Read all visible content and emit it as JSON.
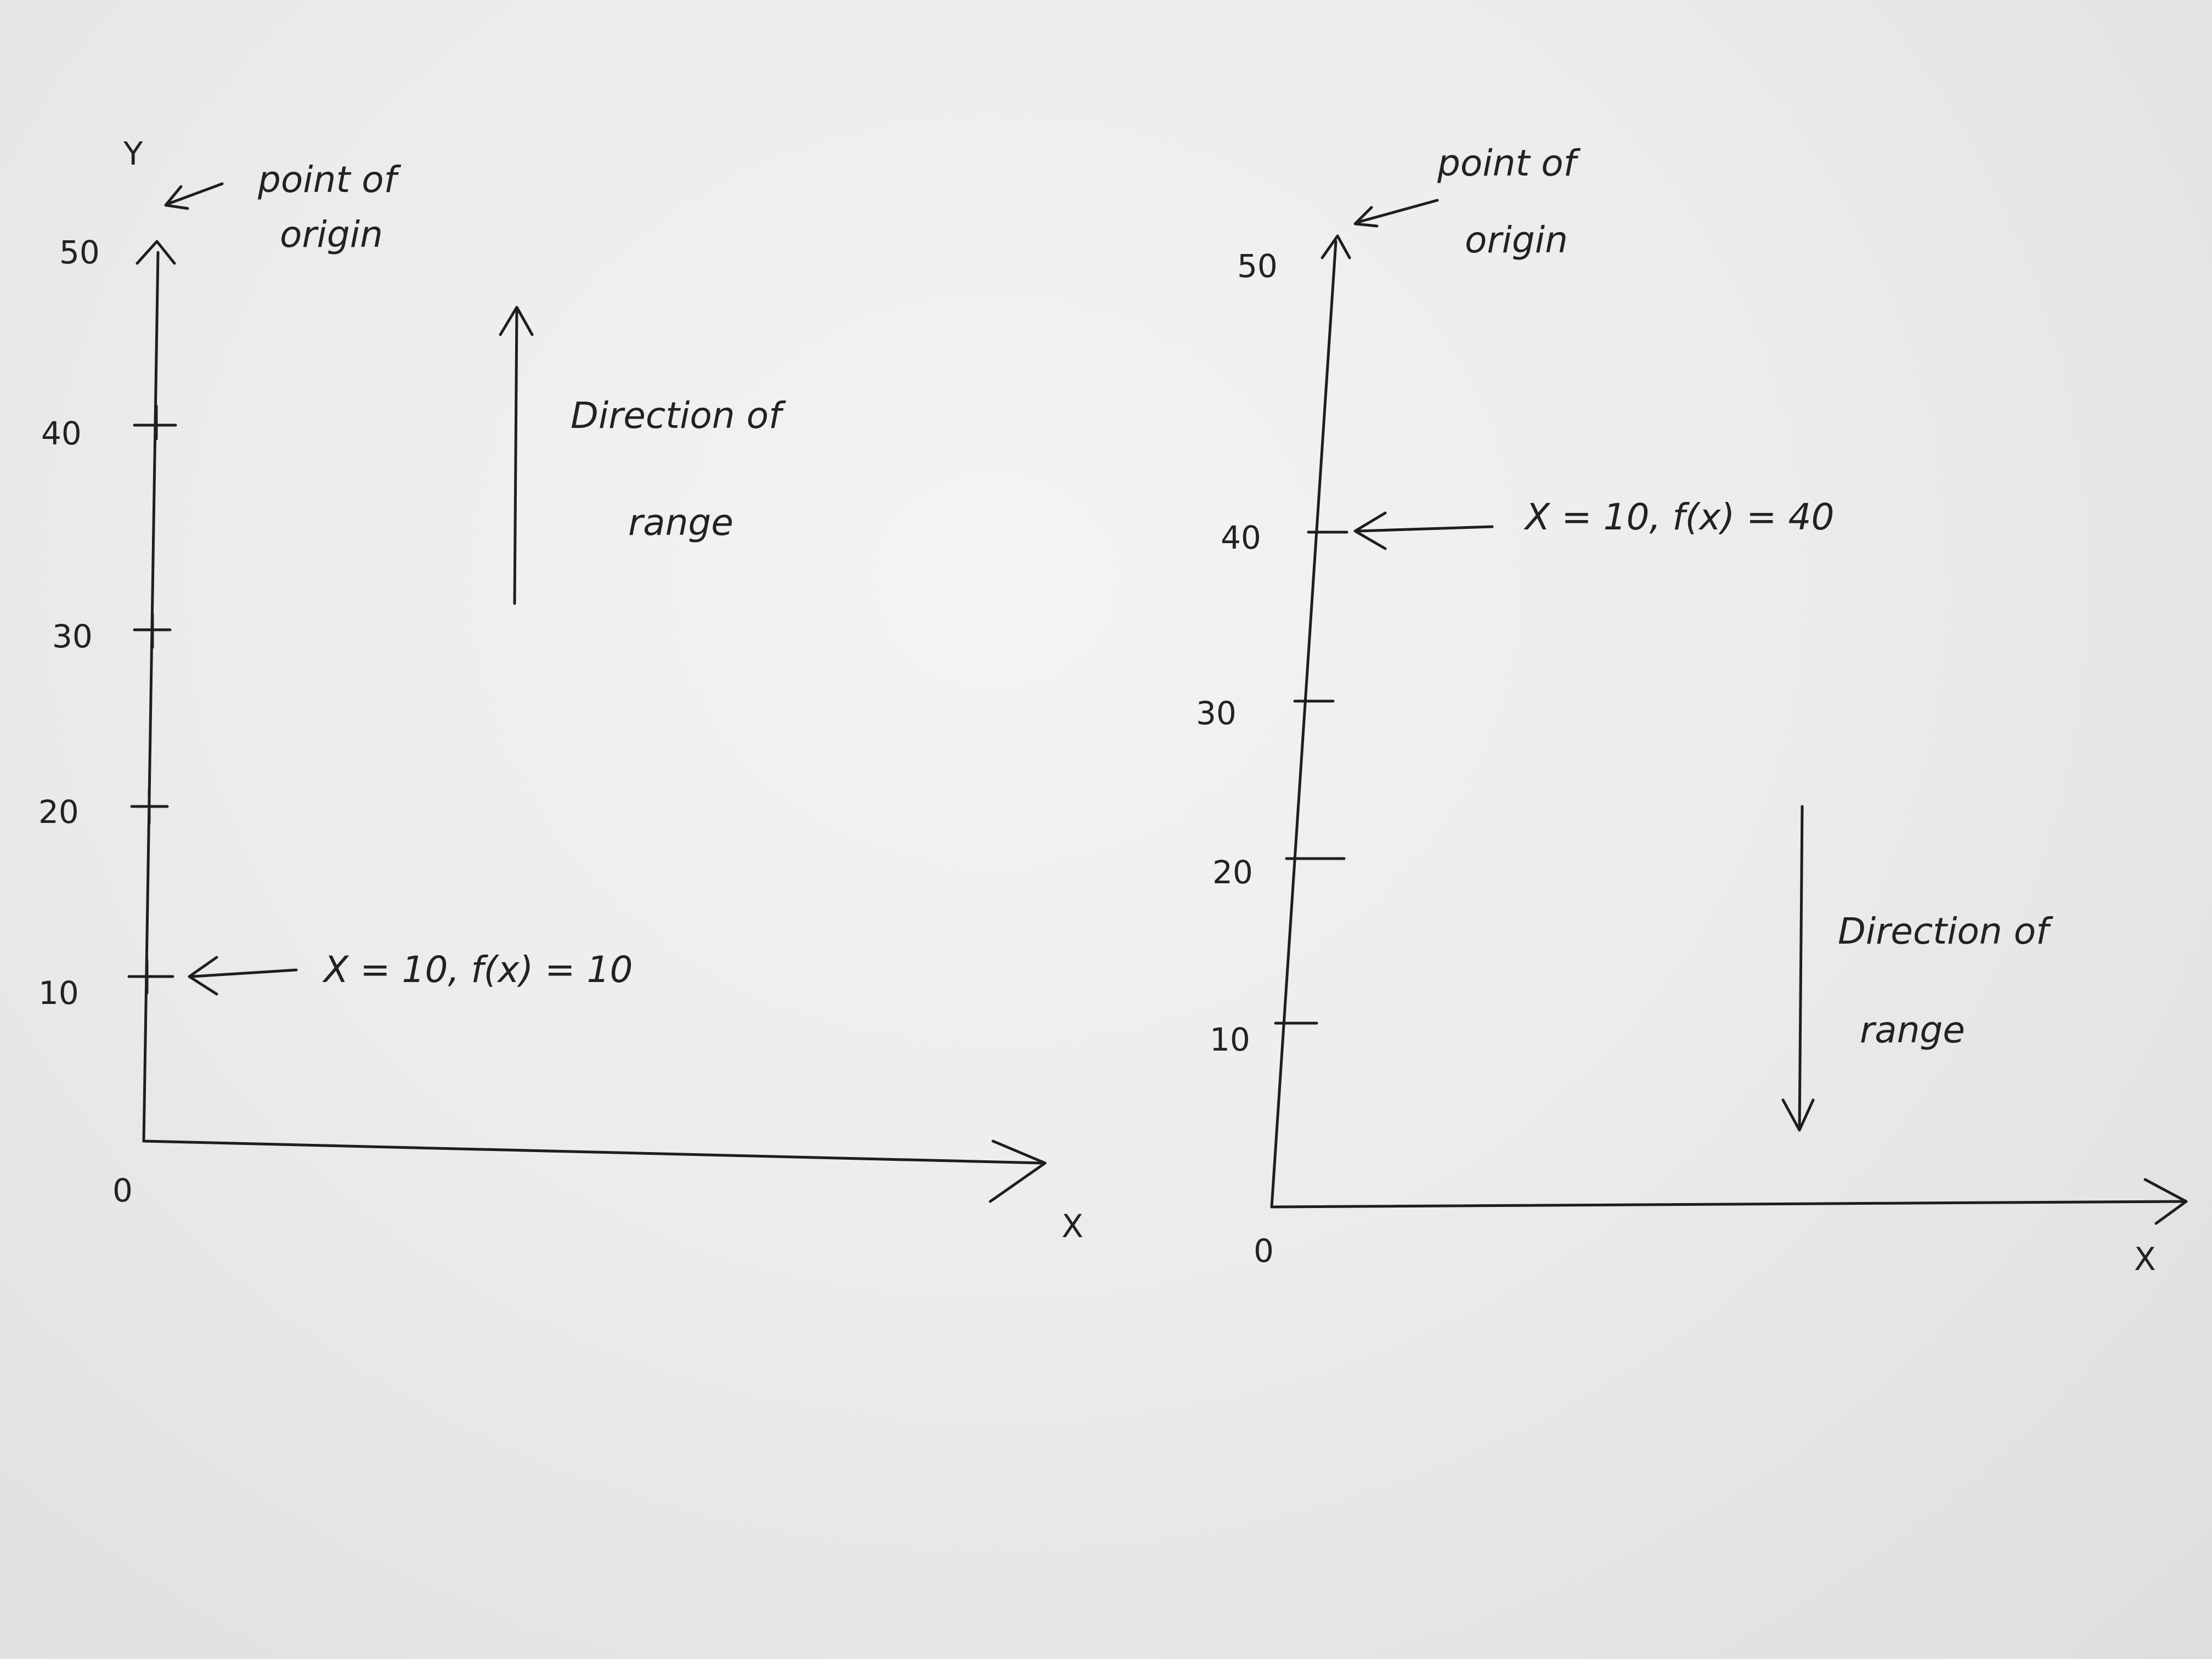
{
  "left_diagram": {
    "y_axis_label": "Y",
    "x_axis_label": "X",
    "origin_label": "0",
    "ticks": [
      "10",
      "20",
      "30",
      "40",
      "50"
    ],
    "origin_annotation": [
      "point of",
      "origin"
    ],
    "direction_annotation": [
      "Direction of",
      "range"
    ],
    "mapping_annotation": "X = 10,  f(x) = 10"
  },
  "right_diagram": {
    "x_axis_label": "X",
    "origin_label": "0",
    "ticks": [
      "10",
      "20",
      "30",
      "40",
      "50"
    ],
    "origin_annotation": [
      "point of",
      "origin"
    ],
    "direction_annotation": [
      "Direction of",
      "range"
    ],
    "mapping_annotation": "X = 10,  f(x) = 40"
  }
}
